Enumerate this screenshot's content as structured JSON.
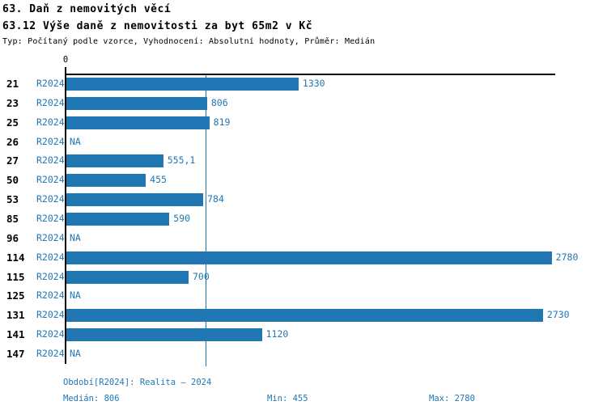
{
  "header": {
    "title1": "63. Daň z nemovitých věcí",
    "title2": "63.12 Výše daně z nemovitosti za byt 65m2 v Kč",
    "meta": "Typ: Počítaný podle vzorce, Vyhodnocení: Absolutní hodnoty, Průměr: Medián"
  },
  "chart_data": {
    "type": "bar",
    "orientation": "horizontal",
    "title": "63.12 Výše daně z nemovitosti za byt 65m2 v Kč",
    "series_label": "R2024",
    "categories": [
      "21",
      "23",
      "25",
      "26",
      "27",
      "50",
      "53",
      "85",
      "96",
      "114",
      "115",
      "125",
      "131",
      "141",
      "147"
    ],
    "values": [
      1330,
      806,
      819,
      null,
      555.1,
      455,
      784,
      590,
      null,
      2780,
      700,
      null,
      2730,
      1120,
      null
    ],
    "value_labels": [
      "1330",
      "806",
      "819",
      "NA",
      "555,1",
      "455",
      "784",
      "590",
      "NA",
      "2780",
      "700",
      "NA",
      "2730",
      "1120",
      "NA"
    ],
    "na_label": "NA",
    "x_axis": {
      "min": 0,
      "max": 2800,
      "zero_tick_label": "0"
    },
    "median_line_value": 806,
    "grid": false,
    "legend": "none"
  },
  "footer": {
    "period": "Období[R2024]: Realita – 2024",
    "median": "Medián: 806",
    "min": "Min: 455",
    "max": "Max: 2780"
  },
  "colors": {
    "bar": "#2077b4",
    "accent_text": "#1f77b4",
    "axis": "#000000",
    "background": "#ffffff"
  }
}
